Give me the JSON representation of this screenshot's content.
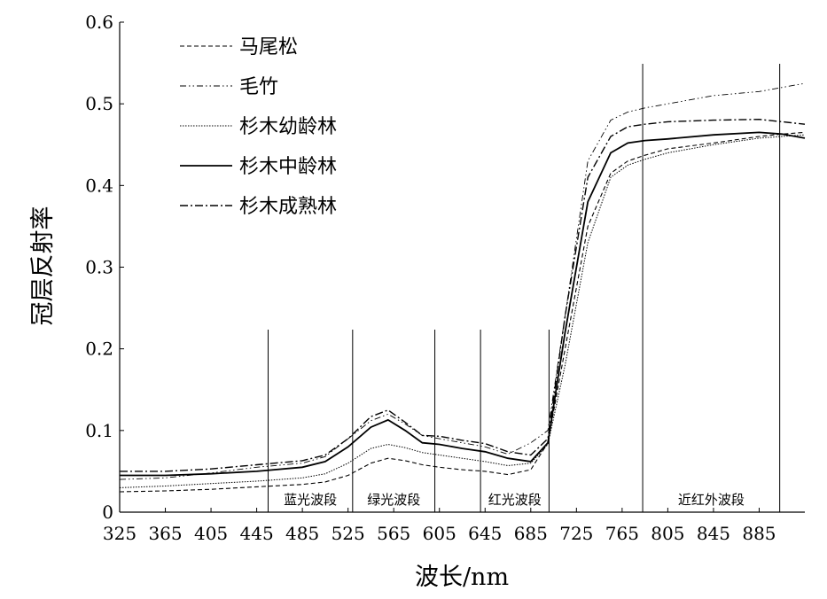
{
  "chart_data": {
    "type": "line",
    "xlabel": "波长/nm",
    "ylabel": "冠层反射率",
    "xlim": [
      325,
      925
    ],
    "ylim": [
      0,
      0.6
    ],
    "xticks": [
      325,
      365,
      405,
      445,
      485,
      525,
      565,
      605,
      645,
      685,
      725,
      765,
      805,
      845,
      885
    ],
    "xtick_labels": [
      "325",
      "365",
      "405",
      "445",
      "485",
      "525",
      "565",
      "605",
      "645",
      "685",
      "725",
      "765",
      "805",
      "845",
      "885"
    ],
    "yticks": [
      0,
      0.1,
      0.2,
      0.3,
      0.4,
      0.5,
      0.6
    ],
    "ytick_labels": [
      "0",
      "0.1",
      "0.2",
      "0.3",
      "0.4",
      "0.5",
      "0.6"
    ],
    "legend_position": "top-left",
    "band_dividers": [
      455,
      529,
      601,
      641,
      701,
      783,
      903
    ],
    "bands": [
      {
        "label": "蓝光波段",
        "from": 455,
        "to": 529
      },
      {
        "label": "绿光波段",
        "from": 529,
        "to": 601
      },
      {
        "label": "红光波段",
        "from": 641,
        "to": 701
      },
      {
        "label": "近红外波段",
        "from": 783,
        "to": 903
      }
    ],
    "x": [
      325,
      365,
      405,
      445,
      485,
      505,
      525,
      545,
      560,
      575,
      590,
      605,
      625,
      645,
      665,
      685,
      700,
      715,
      735,
      755,
      770,
      785,
      805,
      845,
      885,
      905,
      925
    ],
    "series": [
      {
        "name": "马尾松",
        "style": "dashed",
        "values": [
          0.025,
          0.026,
          0.028,
          0.031,
          0.034,
          0.037,
          0.045,
          0.06,
          0.066,
          0.063,
          0.058,
          0.055,
          0.052,
          0.05,
          0.046,
          0.052,
          0.085,
          0.2,
          0.35,
          0.415,
          0.43,
          0.437,
          0.445,
          0.452,
          0.46,
          0.463,
          0.465
        ]
      },
      {
        "name": "毛竹",
        "style": "dash-dot-dot",
        "values": [
          0.04,
          0.042,
          0.048,
          0.055,
          0.06,
          0.068,
          0.09,
          0.112,
          0.12,
          0.108,
          0.094,
          0.09,
          0.085,
          0.08,
          0.071,
          0.085,
          0.1,
          0.24,
          0.43,
          0.48,
          0.49,
          0.495,
          0.5,
          0.51,
          0.515,
          0.52,
          0.525
        ]
      },
      {
        "name": "杉木幼龄林",
        "style": "dotted",
        "values": [
          0.03,
          0.032,
          0.035,
          0.038,
          0.042,
          0.047,
          0.06,
          0.078,
          0.083,
          0.079,
          0.073,
          0.07,
          0.066,
          0.062,
          0.057,
          0.06,
          0.083,
          0.18,
          0.33,
          0.41,
          0.425,
          0.432,
          0.44,
          0.45,
          0.458,
          0.46,
          0.462
        ]
      },
      {
        "name": "杉木中龄林",
        "style": "solid",
        "values": [
          0.045,
          0.045,
          0.047,
          0.05,
          0.055,
          0.062,
          0.08,
          0.104,
          0.113,
          0.1,
          0.085,
          0.083,
          0.078,
          0.074,
          0.066,
          0.062,
          0.085,
          0.22,
          0.38,
          0.44,
          0.452,
          0.455,
          0.457,
          0.462,
          0.465,
          0.463,
          0.458
        ]
      },
      {
        "name": "杉木成熟林",
        "style": "dash-dot",
        "values": [
          0.05,
          0.05,
          0.053,
          0.058,
          0.063,
          0.07,
          0.09,
          0.117,
          0.125,
          0.11,
          0.094,
          0.093,
          0.088,
          0.084,
          0.074,
          0.07,
          0.09,
          0.24,
          0.41,
          0.46,
          0.472,
          0.475,
          0.478,
          0.48,
          0.481,
          0.478,
          0.475
        ]
      }
    ]
  }
}
